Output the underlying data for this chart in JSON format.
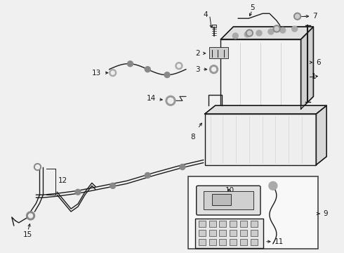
{
  "bg_color": "#f0f0f0",
  "line_color": "#1a1a1a",
  "fig_width": 4.9,
  "fig_height": 3.6,
  "dpi": 100,
  "lw_main": 1.0,
  "lw_thin": 0.6,
  "fontsize": 7.5
}
